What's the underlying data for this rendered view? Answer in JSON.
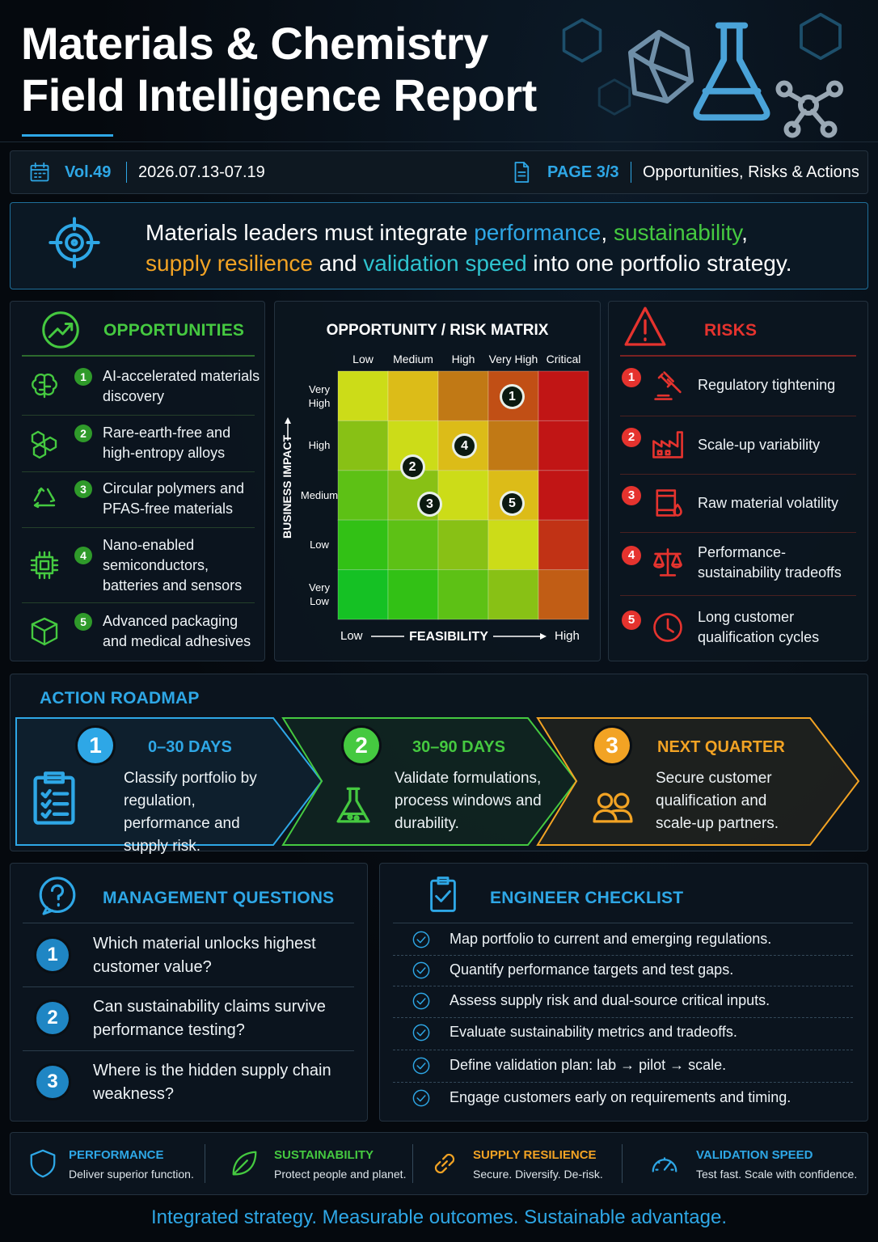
{
  "header": {
    "title_lines": [
      "Materials & Chemistry",
      "Field Intelligence Report"
    ]
  },
  "info_bar": {
    "volume": "Vol.49",
    "dates": "2026.07.13-07.19",
    "page": "PAGE 3/3",
    "section": "Opportunities, Risks & Actions"
  },
  "headline": {
    "lines": [
      [
        {
          "text": "Materials leaders must integrate ",
          "color": "#ffffff"
        },
        {
          "text": "performance",
          "color": "#2ea7e6"
        },
        {
          "text": ", ",
          "color": "#ffffff"
        },
        {
          "text": "sustainability",
          "color": "#45c940"
        },
        {
          "text": ",",
          "color": "#ffffff"
        }
      ],
      [
        {
          "text": "supply resilience",
          "color": "#f2a324"
        },
        {
          "text": " and ",
          "color": "#ffffff"
        },
        {
          "text": "validation speed",
          "color": "#2fc4cf"
        },
        {
          "text": " into one portfolio strategy.",
          "color": "#ffffff"
        }
      ]
    ]
  },
  "opportunities": {
    "title": "OPPORTUNITIES",
    "items": [
      {
        "number": "1",
        "text": "AI-accelerated materials discovery"
      },
      {
        "number": "2",
        "text": "Rare-earth-free and high-entropy alloys"
      },
      {
        "number": "3",
        "text": "Circular polymers and PFAS-free materials"
      },
      {
        "number": "4",
        "text": "Nano-enabled semiconductors, batteries and sensors"
      },
      {
        "number": "5",
        "text": "Advanced packaging and medical adhesives"
      }
    ]
  },
  "matrix": {
    "title": "OPPORTUNITY / RISK MATRIX",
    "columns": [
      "Low",
      "Medium",
      "High",
      "Very High",
      "Critical"
    ],
    "rows": [
      "Very High",
      "High",
      "Medium",
      "Low",
      "Very Low"
    ],
    "y_label": "BUSINESS IMPACT",
    "x_label": "FEASIBILITY",
    "x_low": "Low",
    "x_high": "High",
    "markers": [
      "1",
      "2",
      "3",
      "4",
      "5"
    ]
  },
  "risks": {
    "title": "RISKS",
    "items": [
      {
        "number": "1",
        "text": "Regulatory tightening"
      },
      {
        "number": "2",
        "text": "Scale-up variability"
      },
      {
        "number": "3",
        "text": "Raw material volatility"
      },
      {
        "number": "4",
        "text": "Performance-sustainability tradeoffs"
      },
      {
        "number": "5",
        "text": "Long customer qualification cycles"
      }
    ]
  },
  "roadmap": {
    "title": "ACTION ROADMAP",
    "steps": [
      {
        "number": "1",
        "period": "0–30 DAYS",
        "text": "Classify portfolio by regulation, performance and supply risk.",
        "color": "#2ea7e6"
      },
      {
        "number": "2",
        "period": "30–90 DAYS",
        "text": "Validate formulations, process windows and durability.",
        "color": "#45c940"
      },
      {
        "number": "3",
        "period": "NEXT QUARTER",
        "text": "Secure customer qualification and scale-up partners.",
        "color": "#f2a324"
      }
    ]
  },
  "questions": {
    "title": "MANAGEMENT QUESTIONS",
    "items": [
      {
        "number": "1",
        "text": "Which material unlocks highest customer value?"
      },
      {
        "number": "2",
        "text": "Can sustainability claims survive performance testing?"
      },
      {
        "number": "3",
        "text": "Where is the hidden supply chain weakness?"
      }
    ]
  },
  "checklist": {
    "title": "ENGINEER CHECKLIST",
    "items": [
      "Map portfolio to current and emerging regulations.",
      "Quantify performance targets and test gaps.",
      "Assess supply risk and dual-source critical inputs.",
      "Evaluate sustainability metrics and tradeoffs.",
      "Define validation plan: lab → pilot → scale.",
      "Engage customers early on requirements and timing."
    ]
  },
  "pillars": [
    {
      "title": "PERFORMANCE",
      "text": "Deliver superior function.",
      "color": "#2ea7e6"
    },
    {
      "title": "SUSTAINABILITY",
      "text": "Protect people and planet.",
      "color": "#45c940"
    },
    {
      "title": "SUPPLY RESILIENCE",
      "text": "Secure. Diversify. De-risk.",
      "color": "#f2a324"
    },
    {
      "title": "VALIDATION SPEED",
      "text": "Test fast. Scale with confidence.",
      "color": "#2ea7e6"
    }
  ],
  "footer": "Integrated strategy. Measurable outcomes. Sustainable advantage."
}
